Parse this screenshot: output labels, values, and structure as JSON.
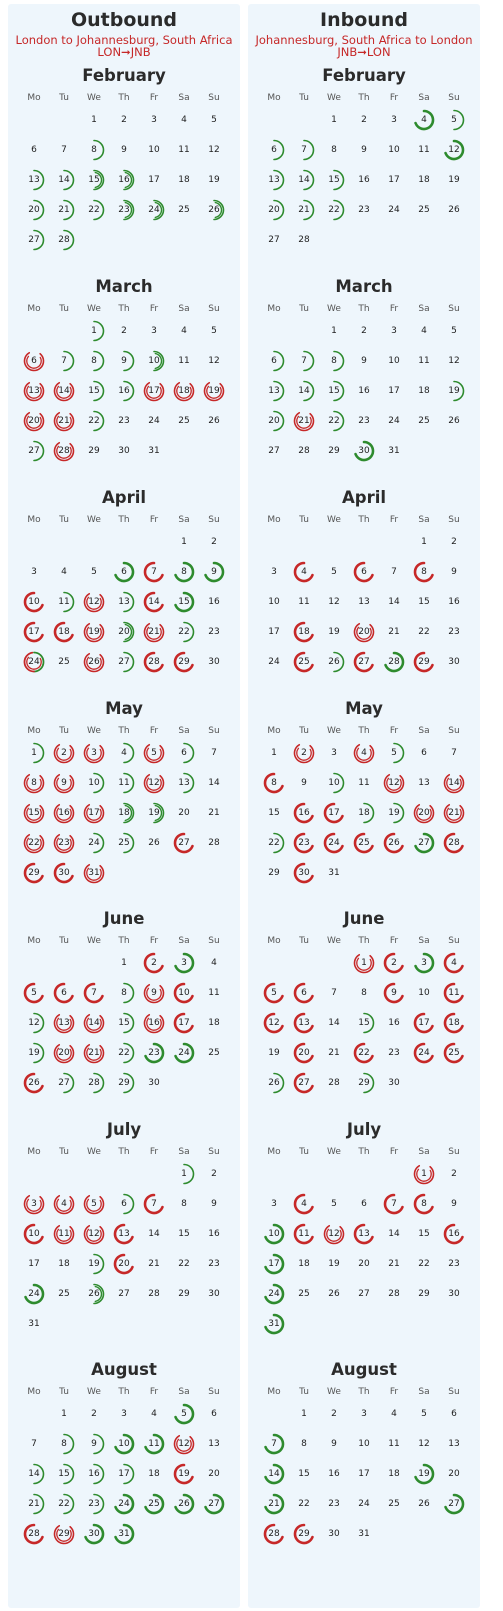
{
  "colors": {
    "green": "#2e8b2e",
    "red": "#c62828"
  },
  "outbound": {
    "title": "Outbound",
    "route": "London to Johannesburg, South Africa",
    "codes": "LON➞JNB",
    "months": [
      {
        "name": "February",
        "offset": 2,
        "days": 28,
        "marks": {
          "8": "g1",
          "13": "g1",
          "14": "g1",
          "15": "g2",
          "16": "g2",
          "20": "g1",
          "21": "g1",
          "22": "g1",
          "23": "g2",
          "24": "g2",
          "26": "g2",
          "27": "g1",
          "28": "g1"
        }
      },
      {
        "name": "March",
        "offset": 2,
        "days": 31,
        "marks": {
          "1": "g1",
          "6": "r2",
          "7": "g1",
          "8": "g1",
          "9": "g1",
          "10": "g2",
          "13": "r2",
          "14": "r2",
          "15": "g1",
          "16": "g1",
          "17": "r2",
          "18": "r2",
          "19": "r2",
          "20": "r2",
          "21": "r2",
          "22": "g1",
          "27": "g1",
          "28": "r2"
        }
      },
      {
        "name": "April",
        "offset": 5,
        "days": 30,
        "marks": {
          "6": "G",
          "7": "R",
          "8": "G",
          "9": "G",
          "10": "R",
          "11": "g1",
          "12": "r2",
          "13": "g1",
          "14": "R",
          "15": "G",
          "17": "R",
          "18": "R",
          "19": "r2",
          "20": "g2",
          "21": "r2",
          "22": "g1",
          "24": "rg",
          "26": "r2",
          "27": "g1",
          "28": "R",
          "29": "R"
        }
      },
      {
        "name": "May",
        "offset": 0,
        "days": 31,
        "marks": {
          "1": "g1",
          "2": "r2",
          "3": "r2",
          "4": "g1",
          "5": "r2",
          "6": "g1",
          "8": "r2",
          "9": "r2",
          "10": "g1",
          "11": "g1",
          "12": "r2",
          "13": "g1",
          "15": "r2",
          "16": "r2",
          "17": "r2",
          "18": "g2",
          "19": "g2",
          "22": "r2",
          "23": "r2",
          "24": "g1",
          "25": "g1",
          "27": "R",
          "29": "R",
          "30": "R",
          "31": "r2"
        }
      },
      {
        "name": "June",
        "offset": 3,
        "days": 30,
        "marks": {
          "2": "R",
          "3": "G",
          "5": "R",
          "6": "R",
          "7": "R",
          "8": "g1",
          "9": "r2",
          "10": "R",
          "12": "g1",
          "13": "r2",
          "14": "r2",
          "15": "g1",
          "16": "r2",
          "17": "R",
          "19": "g1",
          "20": "r2",
          "21": "r2",
          "22": "g1",
          "23": "G",
          "24": "G",
          "26": "R",
          "27": "g1",
          "28": "g1",
          "29": "g1"
        }
      },
      {
        "name": "July",
        "offset": 5,
        "days": 31,
        "marks": {
          "1": "g1",
          "3": "r2",
          "4": "r2",
          "5": "r2",
          "6": "g1",
          "7": "R",
          "10": "R",
          "11": "r2",
          "12": "r2",
          "13": "R",
          "19": "g1",
          "20": "R",
          "24": "G",
          "26": "g2"
        }
      },
      {
        "name": "August",
        "offset": 1,
        "days": 31,
        "marks": {
          "5": "G",
          "8": "g1",
          "9": "g1",
          "10": "G",
          "11": "G",
          "12": "r2",
          "19": "R",
          "14": "g1",
          "15": "g1",
          "16": "g1",
          "17": "g1",
          "24": "G",
          "25": "G",
          "26": "G",
          "21": "g1",
          "22": "g1",
          "23": "g1",
          "27": "G",
          "28": "R",
          "29": "r2",
          "30": "G",
          "31": "G"
        }
      }
    ]
  },
  "inbound": {
    "title": "Inbound",
    "route": "Johannesburg, South Africa to London",
    "codes": "JNB➞LON",
    "months": [
      {
        "name": "February",
        "offset": 2,
        "days": 28,
        "marks": {
          "4": "G",
          "5": "g1",
          "6": "g1",
          "7": "g1",
          "12": "G",
          "13": "g1",
          "14": "g1",
          "15": "g1",
          "20": "g1",
          "21": "g1",
          "22": "g1"
        }
      },
      {
        "name": "March",
        "offset": 2,
        "days": 31,
        "marks": {
          "6": "g1",
          "7": "g1",
          "8": "g1",
          "13": "g1",
          "14": "g1",
          "15": "g1",
          "19": "g1",
          "20": "g1",
          "21": "r2",
          "22": "g1",
          "30": "G"
        }
      },
      {
        "name": "April",
        "offset": 5,
        "days": 30,
        "marks": {
          "4": "R",
          "6": "R",
          "8": "R",
          "18": "R",
          "20": "r2",
          "25": "R",
          "26": "g1",
          "27": "R",
          "28": "G",
          "29": "R"
        }
      },
      {
        "name": "May",
        "offset": 0,
        "days": 31,
        "marks": {
          "2": "r2",
          "4": "r2",
          "5": "g1",
          "8": "R",
          "10": "g1",
          "12": "r2",
          "14": "r2",
          "16": "R",
          "17": "R",
          "18": "g1",
          "19": "g1",
          "20": "r2",
          "21": "r2",
          "22": "g1",
          "23": "R",
          "24": "R",
          "25": "R",
          "26": "R",
          "27": "G",
          "28": "R",
          "30": "R"
        }
      },
      {
        "name": "June",
        "offset": 3,
        "days": 30,
        "marks": {
          "1": "r2",
          "2": "R",
          "3": "G",
          "4": "R",
          "5": "R",
          "6": "R",
          "9": "R",
          "11": "R",
          "12": "R",
          "13": "R",
          "15": "g1",
          "17": "R",
          "18": "R",
          "20": "R",
          "22": "R",
          "24": "R",
          "25": "R",
          "26": "g1",
          "27": "R",
          "29": "g1"
        }
      },
      {
        "name": "July",
        "offset": 5,
        "days": 31,
        "marks": {
          "1": "r2",
          "4": "R",
          "7": "R",
          "8": "R",
          "10": "G",
          "11": "R",
          "12": "r2",
          "13": "R",
          "16": "R",
          "17": "G",
          "24": "G",
          "31": "G"
        }
      },
      {
        "name": "August",
        "offset": 1,
        "days": 31,
        "marks": {
          "7": "G",
          "14": "G",
          "19": "G",
          "21": "G",
          "27": "G",
          "28": "R",
          "29": "R"
        }
      }
    ]
  }
}
